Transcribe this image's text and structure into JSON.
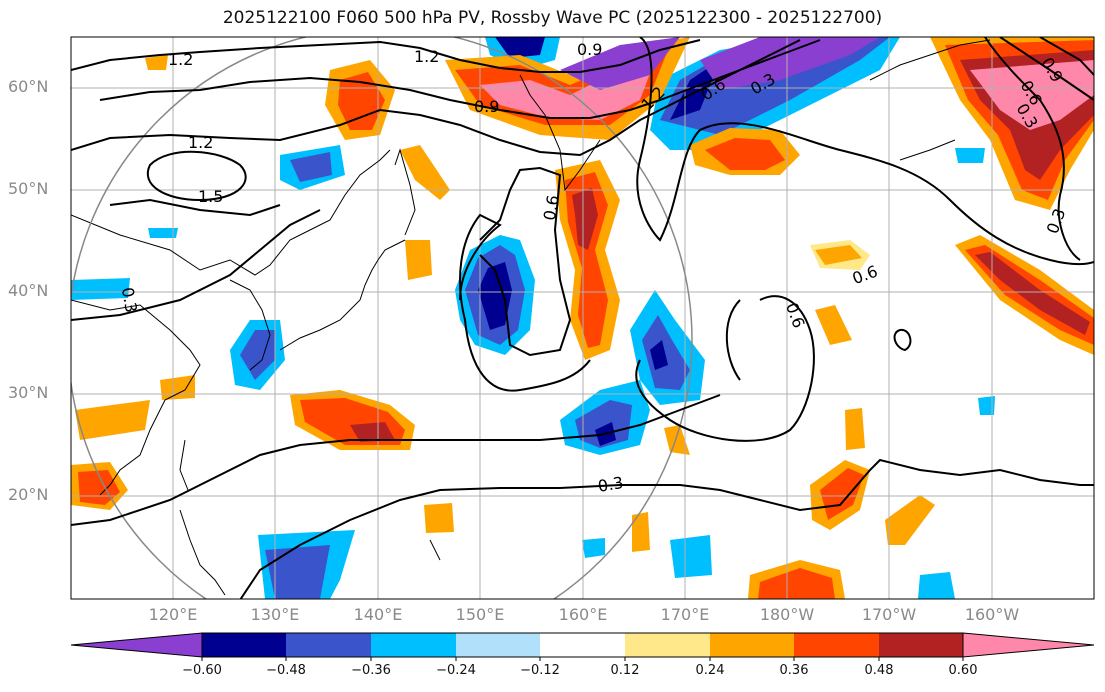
{
  "title": "2025122100 F060 500 hPa PV, Rossby Wave PC (2025122300 - 2025122700)",
  "lat_labels": [
    "60°N",
    "50°N",
    "40°N",
    "30°N",
    "20°N"
  ],
  "lon_labels": [
    "120°E",
    "130°E",
    "140°E",
    "150°E",
    "160°E",
    "170°E",
    "180°W",
    "170°W",
    "160°W"
  ],
  "contour_labels": [
    "1.2",
    "1.2",
    "0.9",
    "1.2",
    "1.5",
    "0.9",
    "0.6",
    "0.3",
    "1.2",
    "0.6",
    "0.6",
    "0.6",
    "0.3",
    "0.3",
    "0.3",
    "0.9",
    "0.6",
    "0.3"
  ],
  "colorbar": {
    "tick_labels": [
      "−0.60",
      "−0.48",
      "−0.36",
      "−0.24",
      "−0.12",
      "0.12",
      "0.24",
      "0.36",
      "0.48",
      "0.60"
    ],
    "colors": [
      "#8a3fd1",
      "#000090",
      "#3a55cc",
      "#00bfff",
      "#b0e0fa",
      "#ffffff",
      "#ffe88a",
      "#ffa500",
      "#ff4500",
      "#b22222",
      "#ff88aa"
    ]
  }
}
